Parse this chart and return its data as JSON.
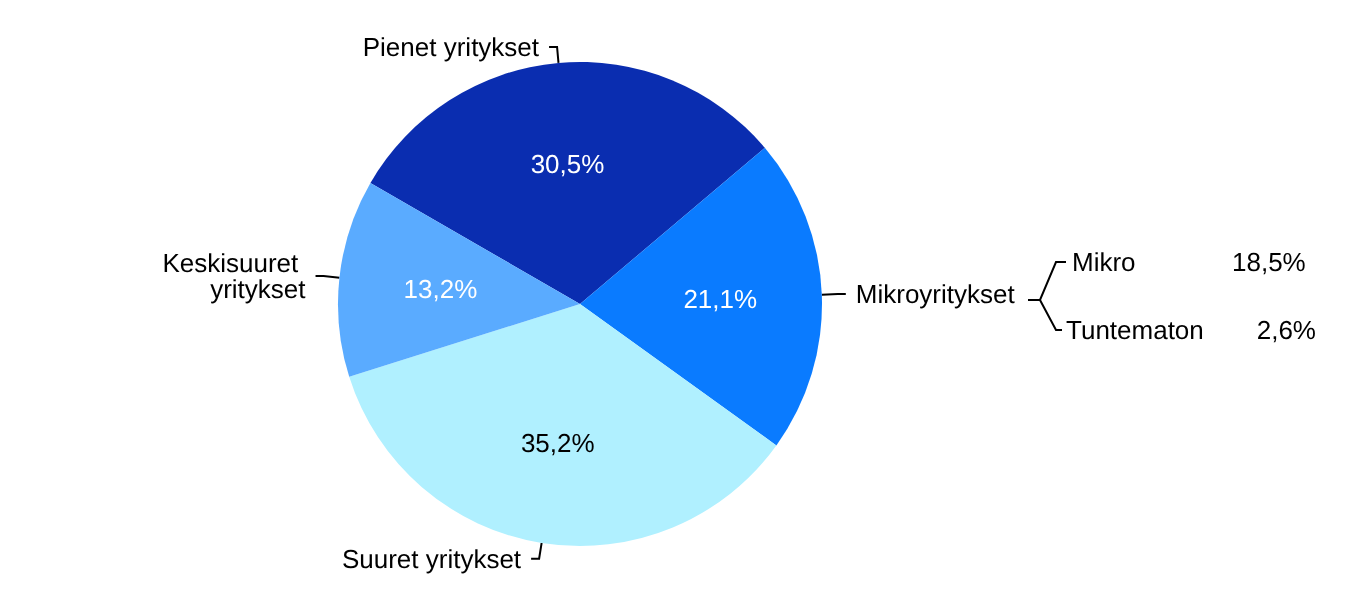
{
  "chart_data": {
    "type": "pie",
    "categories": [
      "Pienet yritykset",
      "Mikroyritykset",
      "Suuret yritykset",
      "Keskisuuret yritykset"
    ],
    "values": [
      30.5,
      21.1,
      35.2,
      13.2
    ],
    "colors": [
      "#0a2db0",
      "#0a7bff",
      "#b0f0ff",
      "#5aabff"
    ],
    "value_labels": [
      "30,5%",
      "21,1%",
      "35,2%",
      "13,2%"
    ],
    "annotations": [
      "Mikro",
      "18,5%",
      "Tuntematon",
      "2,6%"
    ]
  }
}
